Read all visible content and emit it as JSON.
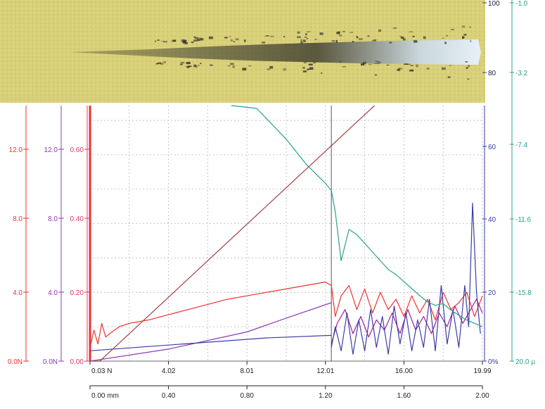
{
  "colors": {
    "background": "#ffffff",
    "micrograph_base": "#d8cf78",
    "micrograph_light": "#e8dd8c",
    "scratch_dark": "#3a3a2e",
    "scratch_shine": "#c8d8e8",
    "red": "#f03030",
    "purple": "#8c3ab8",
    "magenta": "#a0209a",
    "orange": "#c84848",
    "brown": "#a04040",
    "blue": "#3c3ca8",
    "teal": "#2aa090",
    "pink_axis": "#e03a6a",
    "grid": "#b8b8c8"
  },
  "left_axes": [
    {
      "name": "friction-force-axis",
      "color": "#f03030",
      "ticks": [
        "12.0",
        "8.0",
        "4.0",
        "0.0N"
      ],
      "values": [
        12,
        8,
        4,
        0
      ]
    },
    {
      "name": "normal-force-axis",
      "color": "#8c3ab8",
      "ticks": [
        "12.0",
        "8.0",
        "4.0",
        "0.0N"
      ],
      "values": [
        12,
        8,
        4,
        0
      ]
    },
    {
      "name": "friction-coefficient-axis",
      "color": "#e03a6a",
      "ticks": [
        "0.60",
        "0.40",
        "0.20",
        "0.00"
      ],
      "values": [
        0.6,
        0.4,
        0.2,
        0
      ]
    }
  ],
  "right_axes": [
    {
      "name": "acoustic-emission-axis",
      "color": "#3c3ca8",
      "ticks": [
        "100",
        "80",
        "60",
        "40",
        "20",
        "0%"
      ],
      "values": [
        100,
        80,
        60,
        40,
        20,
        0
      ]
    },
    {
      "name": "penetration-depth-axis",
      "color": "#2aa090",
      "ticks": [
        "-1.0",
        "-3.2",
        "-7.4",
        "-11.6",
        "-15.8",
        "20.0 µ"
      ],
      "values": [
        -1.0,
        -3.2,
        -7.4,
        -11.6,
        -15.8,
        -20.0
      ]
    }
  ],
  "bottom_axes": {
    "load": {
      "ticks": [
        "0.03 N",
        "4.02",
        "8.01",
        "12.01",
        "16.00",
        "19.99"
      ],
      "values": [
        0.03,
        4.02,
        8.01,
        12.01,
        16.0,
        19.99
      ]
    },
    "distance": {
      "ticks": [
        "0.00 mm",
        "0.40",
        "0.80",
        "1.20",
        "1.60",
        "2.00"
      ],
      "values": [
        0.0,
        0.4,
        0.8,
        1.2,
        1.6,
        2.0
      ]
    }
  },
  "chart_data": {
    "type": "line",
    "x_unit": "mm",
    "xlim": [
      0.0,
      2.0
    ],
    "grid": true,
    "critical_load_x": 1.23,
    "series": [
      {
        "color": "#a04040",
        "axis": "friction-force-axis",
        "x": [
          0.0,
          0.05,
          1.45
        ],
        "y": [
          0.0,
          0.0,
          19.5
        ]
      },
      {
        "color": "#8c3ab8",
        "axis": "normal-force-axis",
        "x": [
          0.0,
          0.4,
          0.8,
          1.0,
          1.23
        ],
        "y": [
          0.0,
          0.7,
          1.7,
          2.5,
          3.4
        ]
      },
      {
        "color": "#3c3ca8",
        "axis": "normal-force-axis",
        "x": [
          0.0,
          0.3,
          0.6,
          0.9,
          1.23
        ],
        "y": [
          0.6,
          0.85,
          1.1,
          1.35,
          1.5
        ]
      },
      {
        "color": "#f03030",
        "axis": "friction-coefficient-axis",
        "x": [
          0.0,
          0.02,
          0.04,
          0.06,
          0.08,
          0.1,
          0.15,
          0.2,
          0.3,
          0.4,
          0.5,
          0.6,
          0.7,
          0.8,
          0.9,
          1.0,
          1.1,
          1.2,
          1.23,
          1.25,
          1.28,
          1.32,
          1.36,
          1.4,
          1.44,
          1.48,
          1.52,
          1.56,
          1.6,
          1.64,
          1.68,
          1.72,
          1.76,
          1.8,
          1.84,
          1.88,
          1.92,
          1.96,
          2.0
        ],
        "y": [
          0.04,
          0.09,
          0.05,
          0.11,
          0.07,
          0.08,
          0.1,
          0.11,
          0.12,
          0.135,
          0.15,
          0.165,
          0.18,
          0.19,
          0.2,
          0.21,
          0.22,
          0.23,
          0.22,
          0.13,
          0.19,
          0.22,
          0.15,
          0.21,
          0.14,
          0.2,
          0.15,
          0.18,
          0.13,
          0.19,
          0.14,
          0.18,
          0.12,
          0.2,
          0.15,
          0.17,
          0.2,
          0.13,
          0.19
        ]
      },
      {
        "color": "#a0209a",
        "axis": "friction-coefficient-axis",
        "x": [
          1.23,
          1.26,
          1.3,
          1.34,
          1.38,
          1.42,
          1.46,
          1.5,
          1.54,
          1.58,
          1.62,
          1.66,
          1.7,
          1.74,
          1.78,
          1.82,
          1.86,
          1.9,
          1.94,
          1.97,
          2.0
        ],
        "y": [
          0.05,
          0.11,
          0.15,
          0.08,
          0.13,
          0.07,
          0.12,
          0.09,
          0.14,
          0.08,
          0.15,
          0.09,
          0.13,
          0.08,
          0.14,
          0.1,
          0.16,
          0.11,
          0.15,
          0.18,
          0.14
        ]
      },
      {
        "color": "#3c3ca8",
        "axis": "acoustic-emission-axis",
        "x": [
          1.23,
          1.25,
          1.28,
          1.31,
          1.34,
          1.37,
          1.4,
          1.43,
          1.46,
          1.49,
          1.52,
          1.55,
          1.58,
          1.61,
          1.64,
          1.67,
          1.7,
          1.73,
          1.76,
          1.79,
          1.82,
          1.85,
          1.88,
          1.91,
          1.93,
          1.95,
          1.97,
          1.99
        ],
        "y": [
          4,
          10,
          3,
          14,
          2,
          12,
          3,
          15,
          4,
          13,
          2,
          16,
          5,
          14,
          3,
          12,
          4,
          18,
          3,
          22,
          5,
          15,
          4,
          22,
          10,
          46,
          20,
          8
        ]
      },
      {
        "color": "#2aa090",
        "axis": "penetration-depth-axis",
        "x": [
          0.72,
          0.85,
          1.0,
          1.1,
          1.2,
          1.23,
          1.25,
          1.28,
          1.32,
          1.36,
          1.4,
          1.44,
          1.48,
          1.52,
          1.56,
          1.6,
          1.64,
          1.68,
          1.72,
          1.76,
          1.8,
          1.84,
          1.88,
          1.92,
          1.96,
          2.0
        ],
        "y": [
          -4.0,
          -5.3,
          -7.1,
          -8.5,
          -9.6,
          -10.0,
          -11.2,
          -14.0,
          -12.2,
          -12.5,
          -13.0,
          -13.5,
          -14.0,
          -14.5,
          -14.8,
          -15.2,
          -15.6,
          -16.0,
          -16.4,
          -16.6,
          -16.5,
          -16.9,
          -17.2,
          -17.5,
          -17.7,
          -17.9
        ]
      }
    ]
  }
}
